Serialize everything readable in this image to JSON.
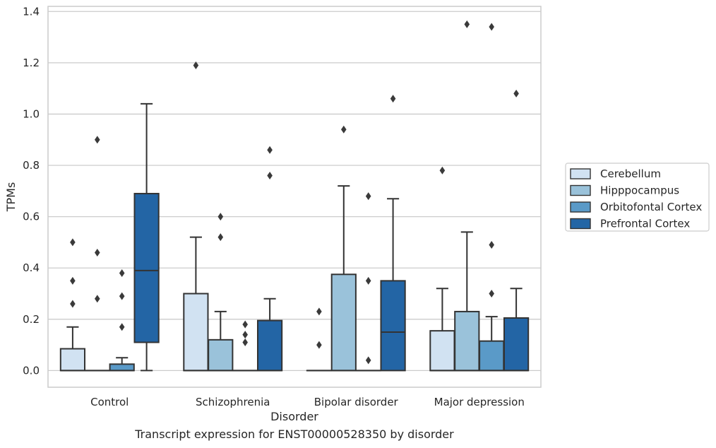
{
  "caption": "Transcript expression for ENST00000528350 by disorder",
  "chart_data": {
    "type": "box",
    "xlabel": "Disorder",
    "ylabel": "TPMs",
    "ylim": [
      -0.065,
      1.42
    ],
    "yticks": [
      "0.0",
      "0.2",
      "0.4",
      "0.6",
      "0.8",
      "1.0",
      "1.2",
      "1.4"
    ],
    "grid": "horizontal",
    "legend_position": "right",
    "categories": [
      "Control",
      "Schizophrenia",
      "Bipolar disorder",
      "Major depression"
    ],
    "series": [
      {
        "name": "Cerebellum",
        "color": "#d1e2f2",
        "boxes": [
          {
            "whislo": 0.0,
            "q1": 0.0,
            "med": 0.0,
            "q3": 0.085,
            "whishi": 0.17,
            "fliers": [
              0.26,
              0.35,
              0.5
            ]
          },
          {
            "whislo": 0.0,
            "q1": 0.0,
            "med": 0.0,
            "q3": 0.3,
            "whishi": 0.52,
            "fliers": [
              1.19
            ]
          },
          {
            "whislo": 0.0,
            "q1": 0.0,
            "med": 0.0,
            "q3": 0.0,
            "whishi": 0.0,
            "fliers": [
              0.1,
              0.23
            ]
          },
          {
            "whislo": 0.0,
            "q1": 0.0,
            "med": 0.0,
            "q3": 0.155,
            "whishi": 0.32,
            "fliers": [
              0.78
            ]
          }
        ]
      },
      {
        "name": "Hipppocampus",
        "color": "#9ac2da",
        "boxes": [
          {
            "whislo": 0.0,
            "q1": 0.0,
            "med": 0.0,
            "q3": 0.0,
            "whishi": 0.0,
            "fliers": [
              0.28,
              0.46,
              0.9
            ]
          },
          {
            "whislo": 0.0,
            "q1": 0.0,
            "med": 0.0,
            "q3": 0.12,
            "whishi": 0.23,
            "fliers": [
              0.52,
              0.6
            ]
          },
          {
            "whislo": 0.0,
            "q1": 0.0,
            "med": 0.0,
            "q3": 0.375,
            "whishi": 0.72,
            "fliers": [
              0.94
            ]
          },
          {
            "whislo": 0.0,
            "q1": 0.0,
            "med": 0.0,
            "q3": 0.23,
            "whishi": 0.54,
            "fliers": [
              1.35
            ]
          }
        ]
      },
      {
        "name": "Orbitofontal Cortex",
        "color": "#5a9ac8",
        "boxes": [
          {
            "whislo": 0.0,
            "q1": 0.0,
            "med": 0.0,
            "q3": 0.025,
            "whishi": 0.05,
            "fliers": [
              0.17,
              0.29,
              0.38
            ]
          },
          {
            "whislo": 0.0,
            "q1": 0.0,
            "med": 0.0,
            "q3": 0.0,
            "whishi": 0.0,
            "fliers": [
              0.11,
              0.14,
              0.18
            ]
          },
          {
            "whislo": 0.0,
            "q1": 0.0,
            "med": 0.0,
            "q3": 0.0,
            "whishi": 0.0,
            "fliers": [
              0.04,
              0.35,
              0.68
            ]
          },
          {
            "whislo": 0.0,
            "q1": 0.0,
            "med": 0.0,
            "q3": 0.115,
            "whishi": 0.21,
            "fliers": [
              0.3,
              0.49,
              1.34
            ]
          }
        ]
      },
      {
        "name": "Prefrontal Cortex",
        "color": "#2365a5",
        "boxes": [
          {
            "whislo": 0.0,
            "q1": 0.11,
            "med": 0.39,
            "q3": 0.69,
            "whishi": 1.04,
            "fliers": []
          },
          {
            "whislo": 0.0,
            "q1": 0.0,
            "med": 0.0,
            "q3": 0.195,
            "whishi": 0.28,
            "fliers": [
              0.76,
              0.86
            ]
          },
          {
            "whislo": 0.0,
            "q1": 0.0,
            "med": 0.15,
            "q3": 0.35,
            "whishi": 0.67,
            "fliers": [
              1.06
            ]
          },
          {
            "whislo": 0.0,
            "q1": 0.0,
            "med": 0.0,
            "q3": 0.205,
            "whishi": 0.32,
            "fliers": [
              1.08
            ]
          }
        ]
      }
    ]
  }
}
